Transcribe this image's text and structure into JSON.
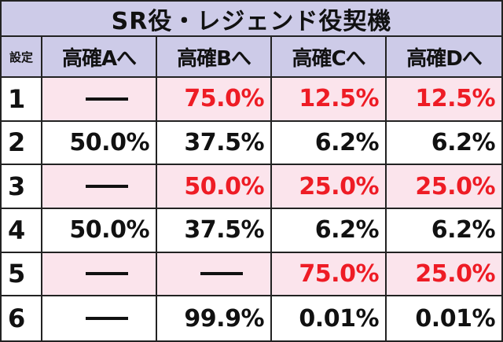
{
  "title": "SR役・レジェンド役契機",
  "header": {
    "corner": "設定",
    "columns": [
      "高確Aへ",
      "高確Bへ",
      "高確Cへ",
      "高確Dへ"
    ]
  },
  "colors": {
    "header_bg": "#cdcbe8",
    "highlight_row_bg": "#fbe4ec",
    "red_text": "#ee1c25",
    "black_text": "#111111"
  },
  "rows": [
    {
      "setting": "1",
      "highlight": true,
      "cells": [
        {
          "text": "—",
          "dash": true,
          "color": "black"
        },
        {
          "text": "75.0%",
          "dash": false,
          "color": "red"
        },
        {
          "text": "12.5%",
          "dash": false,
          "color": "red"
        },
        {
          "text": "12.5%",
          "dash": false,
          "color": "red"
        }
      ]
    },
    {
      "setting": "2",
      "highlight": false,
      "cells": [
        {
          "text": "50.0%",
          "dash": false,
          "color": "black"
        },
        {
          "text": "37.5%",
          "dash": false,
          "color": "black"
        },
        {
          "text": "6.2%",
          "dash": false,
          "color": "black"
        },
        {
          "text": "6.2%",
          "dash": false,
          "color": "black"
        }
      ]
    },
    {
      "setting": "3",
      "highlight": true,
      "cells": [
        {
          "text": "—",
          "dash": true,
          "color": "black"
        },
        {
          "text": "50.0%",
          "dash": false,
          "color": "red"
        },
        {
          "text": "25.0%",
          "dash": false,
          "color": "red"
        },
        {
          "text": "25.0%",
          "dash": false,
          "color": "red"
        }
      ]
    },
    {
      "setting": "4",
      "highlight": false,
      "cells": [
        {
          "text": "50.0%",
          "dash": false,
          "color": "black"
        },
        {
          "text": "37.5%",
          "dash": false,
          "color": "black"
        },
        {
          "text": "6.2%",
          "dash": false,
          "color": "black"
        },
        {
          "text": "6.2%",
          "dash": false,
          "color": "black"
        }
      ]
    },
    {
      "setting": "5",
      "highlight": true,
      "cells": [
        {
          "text": "—",
          "dash": true,
          "color": "black"
        },
        {
          "text": "—",
          "dash": true,
          "color": "black"
        },
        {
          "text": "75.0%",
          "dash": false,
          "color": "red"
        },
        {
          "text": "25.0%",
          "dash": false,
          "color": "red"
        }
      ]
    },
    {
      "setting": "6",
      "highlight": false,
      "cells": [
        {
          "text": "—",
          "dash": true,
          "color": "black"
        },
        {
          "text": "99.9%",
          "dash": false,
          "color": "black"
        },
        {
          "text": "0.01%",
          "dash": false,
          "color": "black"
        },
        {
          "text": "0.01%",
          "dash": false,
          "color": "black"
        }
      ]
    }
  ]
}
